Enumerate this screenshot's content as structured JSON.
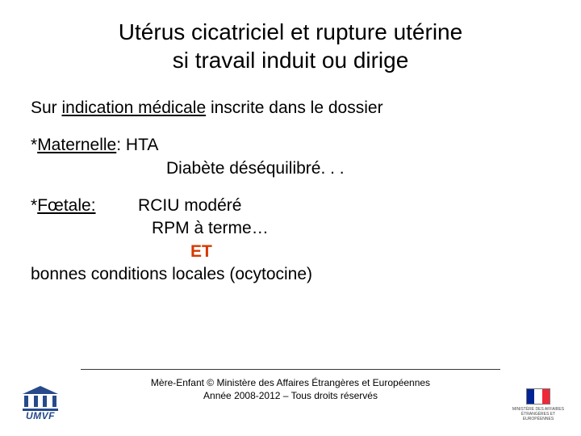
{
  "title": {
    "line1": "Utérus cicatriciel et rupture utérine",
    "line2": "si travail induit ou dirige"
  },
  "intro": {
    "prefix": "Sur ",
    "underlined": "indication médicale",
    "suffix": " inscrite dans le dossier"
  },
  "maternelle": {
    "label": "Maternelle",
    "after": ":  HTA",
    "line2": "Diabète déséquilibré. . ."
  },
  "foetale": {
    "label": "Fœtale:",
    "line1": "RCIU modéré",
    "line2": "RPM à terme…",
    "et": "ET",
    "conditions": "bonnes conditions locales (ocytocine)"
  },
  "footer": {
    "line1": "Mère-Enfant © Ministère des Affaires Étrangères et Européennes",
    "line2": "Année 2008-2012 – Tous droits réservés"
  },
  "logos": {
    "umvf": "UMVF",
    "ministry": "MINISTÈRE DES AFFAIRES ÉTRANGÈRES ET EUROPÉENNES"
  },
  "colors": {
    "accent": "#274a8b",
    "et": "#d43a00",
    "flag_blue": "#002395",
    "flag_red": "#ed2939",
    "text": "#000000",
    "bg": "#ffffff"
  }
}
